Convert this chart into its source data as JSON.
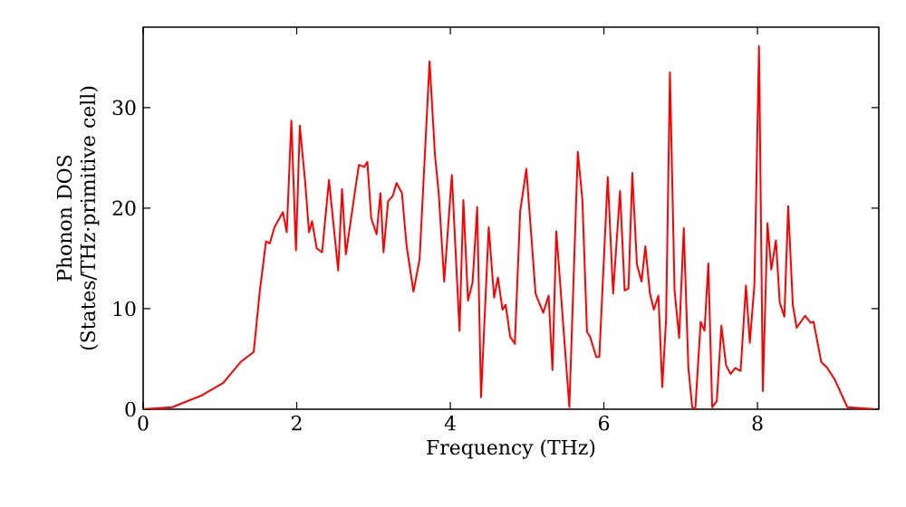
{
  "chart_data": {
    "type": "line",
    "xlabel": "Frequency (THz)",
    "ylabel": "Phonon DOS (States/THz·primitive cell)",
    "xlim": [
      0,
      9.58
    ],
    "ylim": [
      0,
      38
    ],
    "xticks": [
      0,
      2,
      4,
      6,
      8
    ],
    "yticks": [
      0,
      10,
      20,
      30
    ],
    "grid": false,
    "marker": "none",
    "line_style": "solid",
    "series": [
      {
        "color": "#ff0000",
        "x": [
          0,
          0.38,
          0.77,
          1.04,
          1.27,
          1.44,
          1.52,
          1.6,
          1.65,
          1.71,
          1.82,
          1.87,
          1.93,
          1.99,
          2.04,
          2.11,
          2.16,
          2.2,
          2.26,
          2.33,
          2.42,
          2.54,
          2.59,
          2.64,
          2.78,
          2.81,
          2.88,
          2.92,
          2.97,
          3.04,
          3.09,
          3.13,
          3.19,
          3.25,
          3.3,
          3.37,
          3.43,
          3.52,
          3.6,
          3.73,
          3.8,
          3.85,
          3.92,
          4.02,
          4.12,
          4.17,
          4.23,
          4.29,
          4.35,
          4.4,
          4.5,
          4.57,
          4.62,
          4.68,
          4.72,
          4.78,
          4.84,
          4.91,
          4.99,
          5.11,
          5.21,
          5.28,
          5.33,
          5.38,
          5.55,
          5.66,
          5.72,
          5.78,
          5.82,
          5.9,
          5.94,
          6.05,
          6.12,
          6.21,
          6.27,
          6.32,
          6.37,
          6.43,
          6.49,
          6.54,
          6.6,
          6.65,
          6.71,
          6.76,
          6.81,
          6.86,
          6.92,
          6.98,
          7.04,
          7.1,
          7.15,
          7.19,
          7.26,
          7.31,
          7.36,
          7.41,
          7.47,
          7.53,
          7.59,
          7.65,
          7.71,
          7.78,
          7.85,
          7.9,
          7.96,
          8.02,
          8.07,
          8.13,
          8.18,
          8.24,
          8.29,
          8.35,
          8.4,
          8.46,
          8.51,
          8.62,
          8.69,
          8.73,
          8.83,
          8.91,
          9.01,
          9.17,
          9.54
        ],
        "values": [
          0,
          0.2,
          1.4,
          2.6,
          4.7,
          5.7,
          11.8,
          16.7,
          16.5,
          18.1,
          19.6,
          17.6,
          28.7,
          15.8,
          28.2,
          22.6,
          17.6,
          18.7,
          16.0,
          15.6,
          22.8,
          13.8,
          21.9,
          15.4,
          22.8,
          24.3,
          24.1,
          24.6,
          19.0,
          17.4,
          21.5,
          15.6,
          20.7,
          21.2,
          22.5,
          21.5,
          16.3,
          11.7,
          14.9,
          34.6,
          25.3,
          21.4,
          12.7,
          23.3,
          7.8,
          20.8,
          10.8,
          12.6,
          20.1,
          1.2,
          18.1,
          11.1,
          13.1,
          9.9,
          10.4,
          7.2,
          6.5,
          19.7,
          23.9,
          11.5,
          9.6,
          11.3,
          3.9,
          17.7,
          0.2,
          25.6,
          20.8,
          7.7,
          7.2,
          5.2,
          5.2,
          23.1,
          11.5,
          21.7,
          11.8,
          12.0,
          23.5,
          14.4,
          12.7,
          16.2,
          11.5,
          9.9,
          11.3,
          2.2,
          9.0,
          33.5,
          11.8,
          7.1,
          18.0,
          4.1,
          0.2,
          0,
          8.7,
          7.8,
          14.5,
          0.2,
          0.8,
          8.3,
          4.4,
          3.5,
          4.1,
          3.8,
          12.3,
          6.6,
          12.4,
          36.1,
          1.8,
          18.5,
          13.9,
          16.8,
          10.6,
          9.2,
          20.2,
          10.4,
          8.1,
          9.3,
          8.6,
          8.7,
          4.7,
          4.1,
          2.9,
          0.2,
          0
        ]
      }
    ]
  }
}
